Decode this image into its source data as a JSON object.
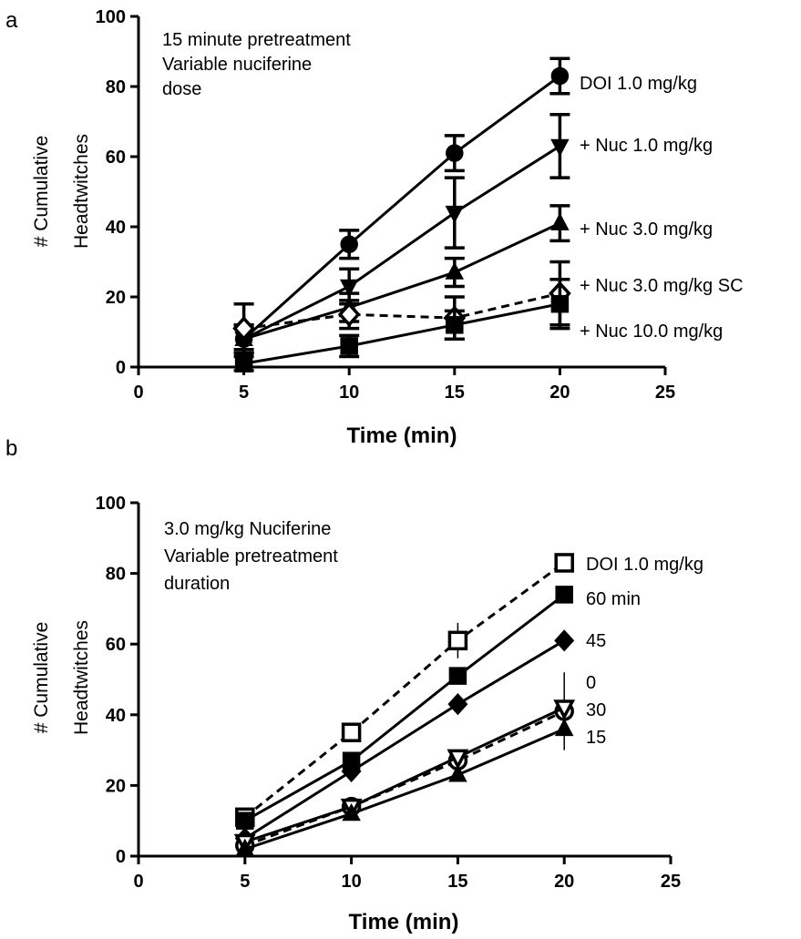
{
  "chart_data": [
    {
      "panel": "a",
      "type": "line",
      "annotation": [
        "15 minute pretreatment",
        "Variable nuciferine",
        "dose"
      ],
      "xlabel": "Time (min)",
      "ylabel": [
        "# Cumulative",
        "Headtwitches"
      ],
      "xlim": [
        0,
        25
      ],
      "ylim": [
        0,
        100
      ],
      "xticks": [
        "0",
        "5",
        "10",
        "15",
        "20",
        "25"
      ],
      "yticks": [
        "0",
        "20",
        "40",
        "60",
        "80",
        "100"
      ],
      "x": [
        5,
        10,
        15,
        20
      ],
      "series": [
        {
          "name": "DOI 1.0 mg/kg",
          "marker": "circle",
          "dashed": false,
          "values": [
            8,
            35,
            61,
            83
          ],
          "errors": [
            4,
            4,
            5,
            5
          ]
        },
        {
          "name": "+ Nuc 1.0 mg/kg",
          "marker": "triangle-down",
          "dashed": false,
          "values": [
            8,
            23,
            44,
            63
          ],
          "errors": [
            4,
            5,
            10,
            9
          ]
        },
        {
          "name": "+ Nuc 3.0 mg/kg",
          "marker": "triangle-up",
          "dashed": false,
          "values": [
            8,
            17,
            27,
            41
          ],
          "errors": [
            3,
            4,
            4,
            5
          ]
        },
        {
          "name": "+ Nuc 3.0 mg/kg SC",
          "marker": "diamond-open",
          "dashed": true,
          "values": [
            11,
            15,
            14,
            21
          ],
          "errors": [
            7,
            4,
            6,
            9
          ]
        },
        {
          "name": "+ Nuc 10.0 mg/kg",
          "marker": "square",
          "dashed": false,
          "values": [
            1,
            6,
            12,
            18
          ],
          "errors": [
            2,
            3,
            4,
            7
          ]
        }
      ]
    },
    {
      "panel": "b",
      "type": "line",
      "annotation": [
        "3.0 mg/kg Nuciferine",
        "Variable pretreatment",
        "duration"
      ],
      "xlabel": "Time (min)",
      "ylabel": [
        "# Cumulative",
        "Headtwitches"
      ],
      "xlim": [
        0,
        25
      ],
      "ylim": [
        0,
        100
      ],
      "xticks": [
        "0",
        "5",
        "10",
        "15",
        "20",
        "25"
      ],
      "yticks": [
        "0",
        "20",
        "40",
        "60",
        "80",
        "100"
      ],
      "x": [
        5,
        10,
        15,
        20
      ],
      "series": [
        {
          "name": "DOI 1.0 mg/kg",
          "marker": "square-open",
          "dashed": true,
          "values": [
            11,
            35,
            61,
            83
          ],
          "errors": [
            0,
            0,
            5,
            0
          ]
        },
        {
          "name": "60 min",
          "marker": "square",
          "dashed": false,
          "values": [
            10,
            27,
            51,
            74
          ],
          "errors": [
            0,
            0,
            0,
            0
          ]
        },
        {
          "name": "45",
          "marker": "diamond",
          "dashed": false,
          "values": [
            5,
            24,
            43,
            61
          ],
          "errors": [
            0,
            0,
            0,
            0
          ]
        },
        {
          "name": "0",
          "marker": "circle-open",
          "dashed": true,
          "values": [
            3,
            14,
            27,
            41
          ],
          "errors": [
            0,
            0,
            0,
            11
          ]
        },
        {
          "name": "30",
          "marker": "triangle-down-open",
          "dashed": false,
          "values": [
            4,
            14,
            28,
            42
          ],
          "errors": [
            0,
            0,
            0,
            0
          ]
        },
        {
          "name": "15",
          "marker": "triangle-up",
          "dashed": false,
          "values": [
            2,
            12,
            23,
            36
          ],
          "errors": [
            0,
            0,
            0,
            0
          ]
        }
      ]
    }
  ]
}
